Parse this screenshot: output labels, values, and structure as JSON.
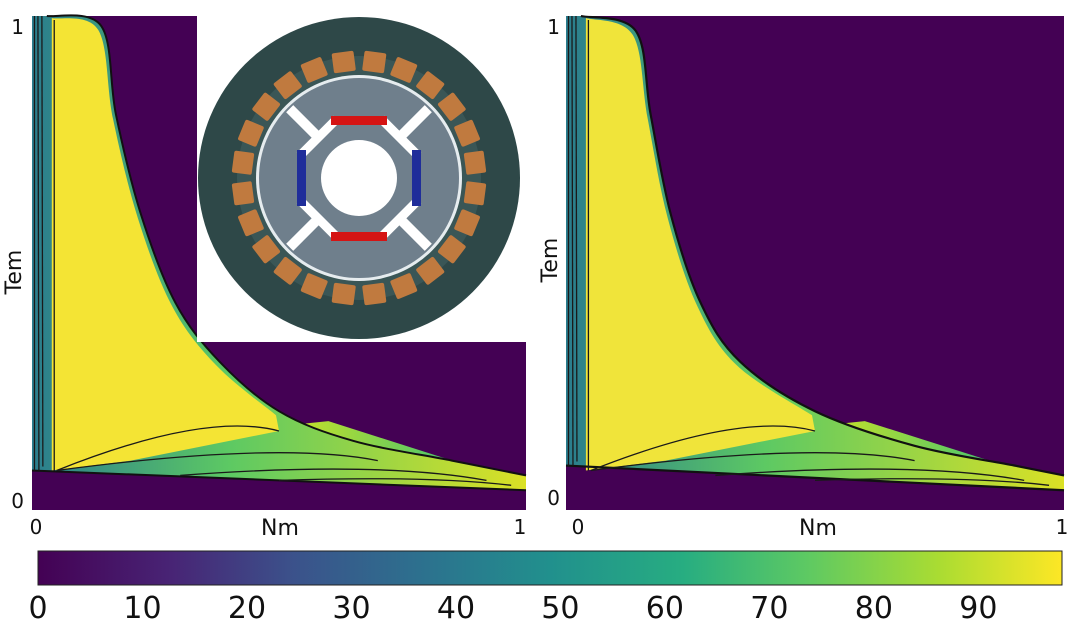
{
  "chart_data": [
    {
      "type": "heatmap",
      "panel": "left",
      "title": "",
      "xlabel": "Nm",
      "ylabel": "Tem",
      "xlim": [
        0,
        1
      ],
      "ylim": [
        0,
        1
      ],
      "x_ticks": [
        "0",
        "1"
      ],
      "y_ticks": [
        "0",
        "1"
      ],
      "inset": "motor-cross-section",
      "yellow_boundary": [
        {
          "x": 0.03,
          "y": 1.0
        },
        {
          "x": 0.14,
          "y": 0.98
        },
        {
          "x": 0.17,
          "y": 0.8
        },
        {
          "x": 0.22,
          "y": 0.6
        },
        {
          "x": 0.29,
          "y": 0.42
        },
        {
          "x": 0.38,
          "y": 0.3
        },
        {
          "x": 0.5,
          "y": 0.2
        },
        {
          "x": 0.65,
          "y": 0.14
        },
        {
          "x": 0.85,
          "y": 0.1
        },
        {
          "x": 1.0,
          "y": 0.07
        }
      ],
      "bottom_boundary": [
        {
          "x": 0.0,
          "y": 0.08
        },
        {
          "x": 1.0,
          "y": 0.04
        }
      ]
    },
    {
      "type": "heatmap",
      "panel": "right",
      "title": "",
      "xlabel": "Nm",
      "ylabel": "Tem",
      "xlim": [
        0,
        1
      ],
      "ylim": [
        0,
        1
      ],
      "x_ticks": [
        "0",
        "1"
      ],
      "y_ticks": [
        "0",
        "1"
      ],
      "yellow_boundary": [
        {
          "x": 0.03,
          "y": 1.0
        },
        {
          "x": 0.14,
          "y": 0.97
        },
        {
          "x": 0.17,
          "y": 0.8
        },
        {
          "x": 0.21,
          "y": 0.6
        },
        {
          "x": 0.27,
          "y": 0.42
        },
        {
          "x": 0.35,
          "y": 0.3
        },
        {
          "x": 0.5,
          "y": 0.2
        },
        {
          "x": 0.7,
          "y": 0.13
        },
        {
          "x": 0.9,
          "y": 0.09
        },
        {
          "x": 1.0,
          "y": 0.07
        }
      ],
      "bottom_boundary": [
        {
          "x": 0.0,
          "y": 0.09
        },
        {
          "x": 1.0,
          "y": 0.04
        }
      ]
    }
  ],
  "colorbar": {
    "min": 0,
    "max": 98,
    "ticks": [
      "0",
      "10",
      "20",
      "30",
      "40",
      "50",
      "60",
      "70",
      "80",
      "90"
    ],
    "colormap": [
      "#440154",
      "#3b528b",
      "#21908d",
      "#5dc963",
      "#fde725"
    ]
  }
}
